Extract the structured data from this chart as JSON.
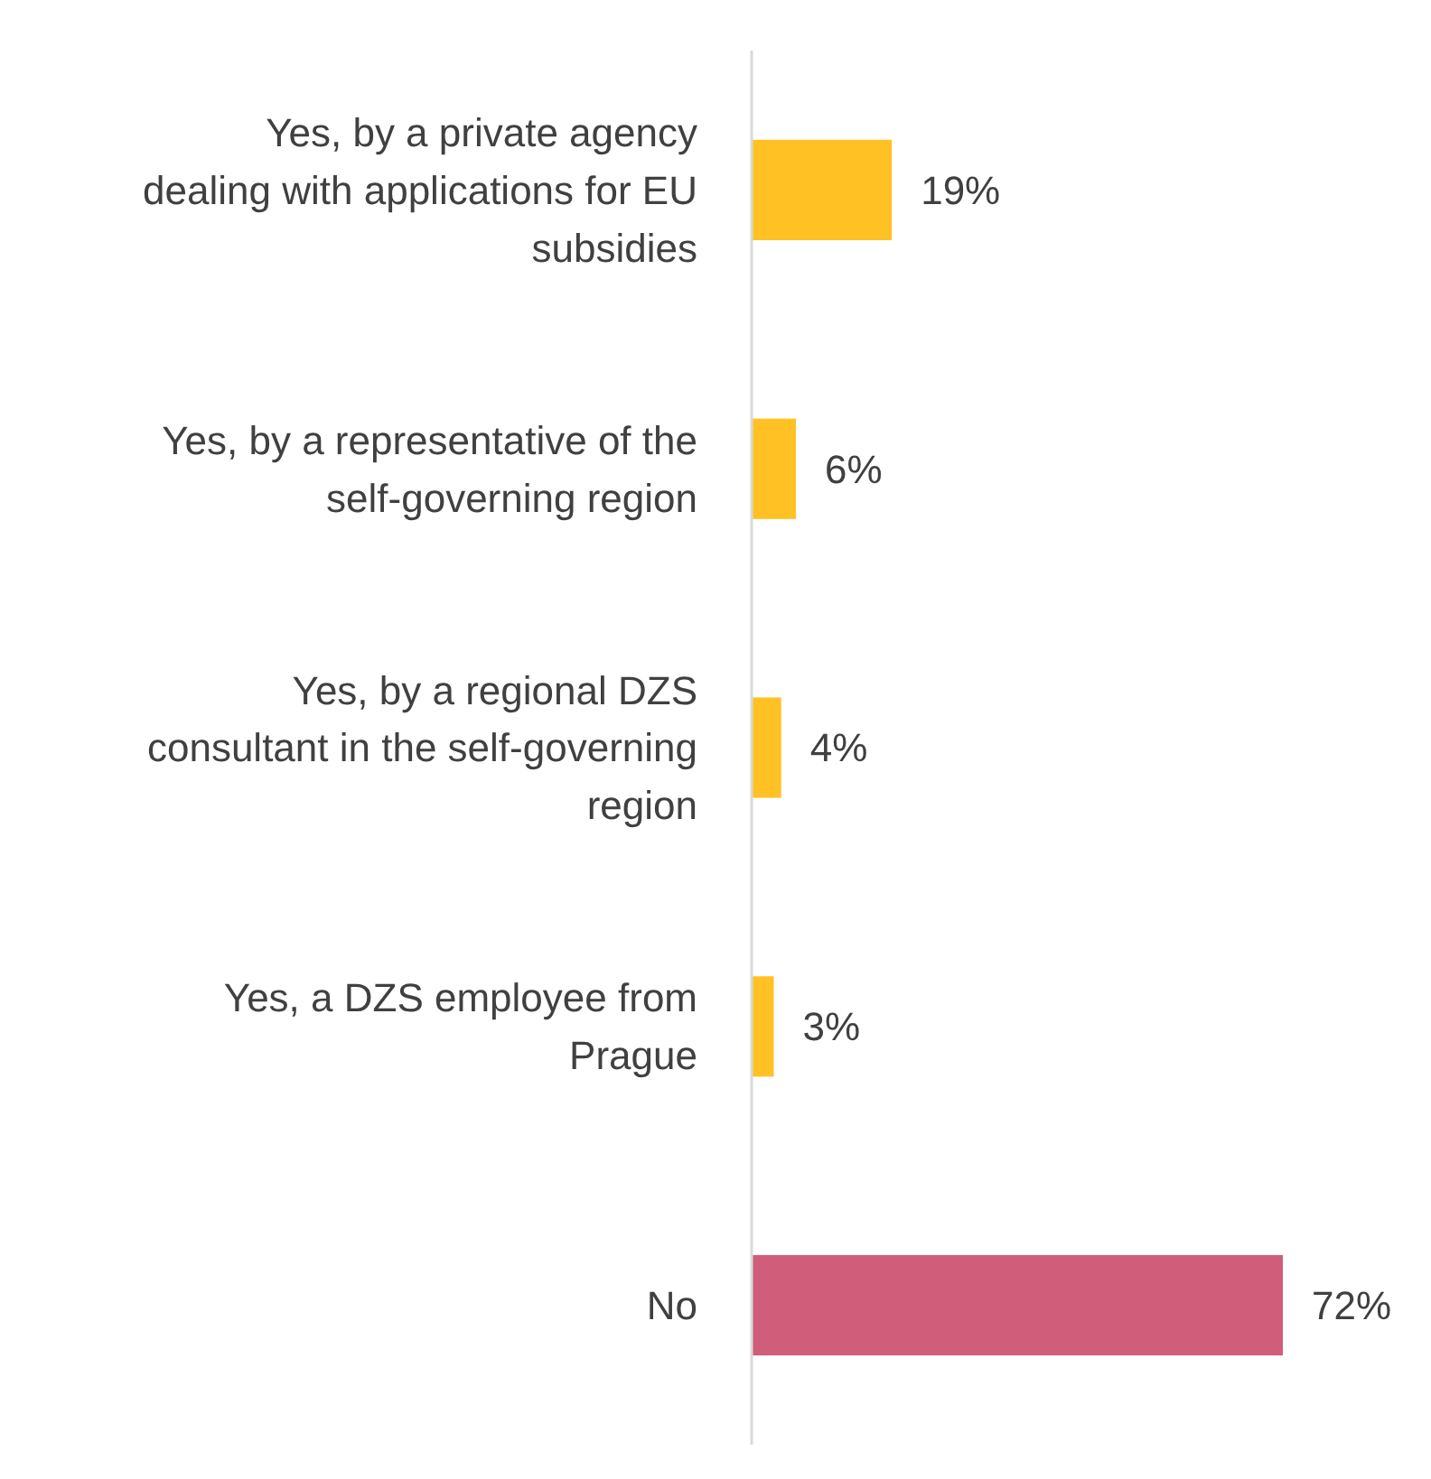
{
  "chart_data": {
    "type": "bar",
    "orientation": "horizontal",
    "categories": [
      "Yes, by a private agency dealing with applications for EU subsidies",
      "Yes, by a representative of the self-governing region",
      "Yes, by a regional DZS consultant in the self-governing region",
      "Yes, a DZS employee from Prague",
      "No"
    ],
    "values": [
      19,
      6,
      4,
      3,
      72
    ],
    "colors": [
      "#ffc124",
      "#ffc124",
      "#ffc124",
      "#ffc124",
      "#d05e7b"
    ],
    "value_labels": [
      "19%",
      "6%",
      "4%",
      "3%",
      "72%"
    ],
    "tick_labels": "y"
  }
}
